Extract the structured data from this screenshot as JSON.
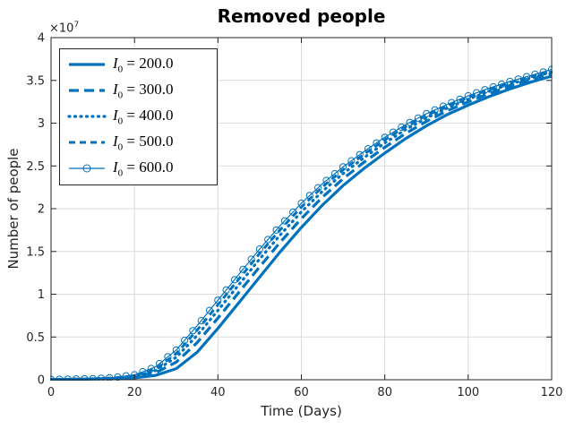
{
  "figure": {
    "background": "#ffffff",
    "axis_color": "#262626",
    "grid_color": "#dbdbdb",
    "line_color": "#0072BD",
    "legend_border_color": "#262626"
  },
  "chart_data": {
    "type": "line",
    "title": "Removed people",
    "xlabel": "Time (Days)",
    "ylabel": "Number of people",
    "y_exponent_base": "×10",
    "y_exponent": "7",
    "y_multiplier": 10000000,
    "xlim": [
      0,
      120
    ],
    "ylim_e7": [
      0,
      4
    ],
    "x_ticks": [
      0,
      20,
      40,
      60,
      80,
      100,
      120
    ],
    "y_ticks_e7": [
      0,
      0.5,
      1,
      1.5,
      2,
      2.5,
      3,
      3.5,
      4
    ],
    "grid": true,
    "legend_position": "top-left",
    "marker_step": 2,
    "x": [
      0,
      5,
      10,
      15,
      20,
      25,
      30,
      35,
      40,
      45,
      50,
      55,
      60,
      65,
      70,
      75,
      80,
      85,
      90,
      95,
      100,
      105,
      110,
      115,
      120
    ],
    "series": [
      {
        "id": "I0-200",
        "symbol": "I",
        "subscript": "0",
        "value_text": "= 200.0",
        "label": "I_0 = 200.0",
        "line_style": "solid",
        "line_width": 3.2,
        "marker": "none",
        "values_e7": [
          0.002,
          0.004,
          0.007,
          0.012,
          0.022,
          0.05,
          0.13,
          0.32,
          0.6,
          0.9,
          1.2,
          1.5,
          1.78,
          2.04,
          2.27,
          2.47,
          2.65,
          2.82,
          2.97,
          3.1,
          3.21,
          3.31,
          3.4,
          3.48,
          3.55
        ]
      },
      {
        "id": "I0-300",
        "symbol": "I",
        "subscript": "0",
        "value_text": "= 300.0",
        "label": "I_0 = 300.0",
        "line_style": "dashed",
        "line_width": 3.2,
        "marker": "none",
        "values_e7": [
          0.003,
          0.005,
          0.009,
          0.016,
          0.033,
          0.082,
          0.206,
          0.432,
          0.72,
          1.02,
          1.32,
          1.612,
          1.884,
          2.132,
          2.35,
          2.542,
          2.718,
          2.88,
          3.022,
          3.144,
          3.25,
          3.346,
          3.432,
          3.508,
          3.578
        ]
      },
      {
        "id": "I0-400",
        "symbol": "I",
        "subscript": "0",
        "value_text": "= 400.0",
        "label": "I_0 = 400.0",
        "line_style": "dotted",
        "line_width": 3.2,
        "marker": "none",
        "values_e7": [
          0.003,
          0.006,
          0.011,
          0.019,
          0.042,
          0.106,
          0.263,
          0.516,
          0.81,
          1.11,
          1.41,
          1.696,
          1.962,
          2.201,
          2.41,
          2.596,
          2.769,
          2.925,
          3.061,
          3.177,
          3.28,
          3.373,
          3.456,
          3.529,
          3.599
        ]
      },
      {
        "id": "I0-500",
        "symbol": "I",
        "subscript": "0",
        "value_text": "= 500.0",
        "label": "I_0 = 500.0",
        "line_style": "dashed-short",
        "line_width": 3.0,
        "marker": "none",
        "values_e7": [
          0.004,
          0.007,
          0.012,
          0.021,
          0.048,
          0.124,
          0.305,
          0.578,
          0.876,
          1.176,
          1.476,
          1.758,
          2.019,
          2.252,
          2.454,
          2.636,
          2.806,
          2.958,
          3.09,
          3.201,
          3.302,
          3.393,
          3.474,
          3.544,
          3.614
        ]
      },
      {
        "id": "I0-600",
        "symbol": "I",
        "subscript": "0",
        "value_text": "= 600.0",
        "label": "I_0 = 600.0",
        "line_style": "solid",
        "line_width": 1.2,
        "marker": "circle",
        "values_e7": [
          0.004,
          0.008,
          0.013,
          0.025,
          0.058,
          0.149,
          0.348,
          0.63,
          0.93,
          1.23,
          1.528,
          1.806,
          2.063,
          2.29,
          2.488,
          2.667,
          2.835,
          2.983,
          3.111,
          3.22,
          3.319,
          3.408,
          3.487,
          3.557,
          3.627
        ]
      }
    ]
  }
}
